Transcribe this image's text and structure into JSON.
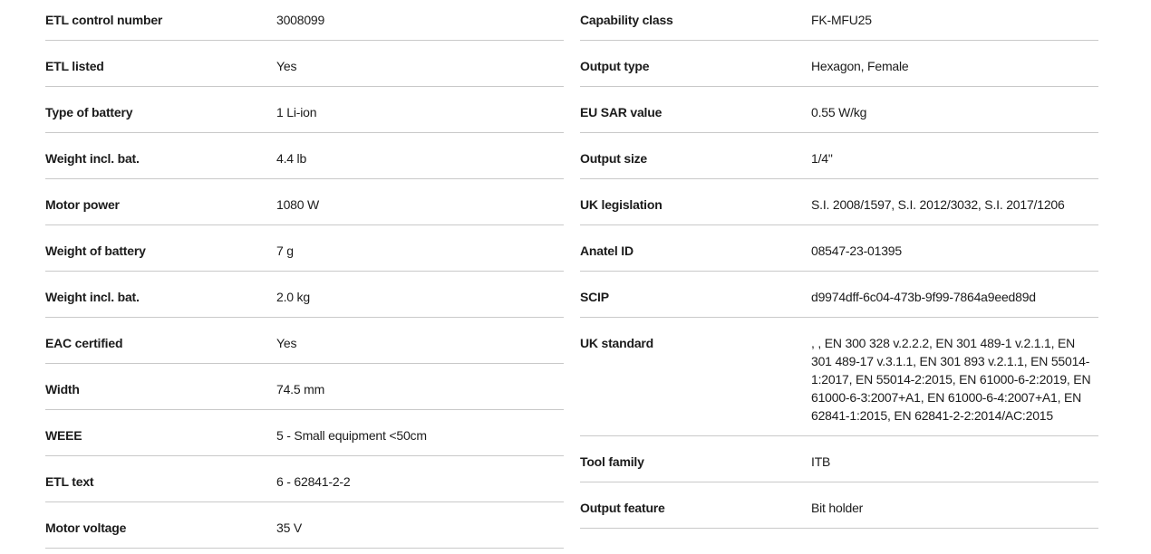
{
  "colors": {
    "text": "#1b1b1b",
    "divider": "#c9c9c9",
    "background": "#ffffff"
  },
  "left_table": {
    "rows": [
      {
        "label": "ETL control number",
        "value": "3008099"
      },
      {
        "label": "ETL listed",
        "value": "Yes"
      },
      {
        "label": "Type of battery",
        "value": "1 Li-ion"
      },
      {
        "label": "Weight incl. bat.",
        "value": "4.4 lb"
      },
      {
        "label": "Motor power",
        "value": "1080 W"
      },
      {
        "label": "Weight of battery",
        "value": "7 g"
      },
      {
        "label": "Weight incl. bat.",
        "value": "2.0 kg"
      },
      {
        "label": "EAC certified",
        "value": "Yes"
      },
      {
        "label": "Width",
        "value": "74.5 mm"
      },
      {
        "label": "WEEE",
        "value": "5 - Small equipment <50cm"
      },
      {
        "label": "ETL text",
        "value": "6 - 62841-2-2"
      },
      {
        "label": "Motor voltage",
        "value": "35 V"
      }
    ]
  },
  "right_table": {
    "rows": [
      {
        "label": "Capability class",
        "value": "FK-MFU25"
      },
      {
        "label": "Output type",
        "value": "Hexagon, Female"
      },
      {
        "label": "EU SAR value",
        "value": "0.55 W/kg"
      },
      {
        "label": "Output size",
        "value": "1/4\""
      },
      {
        "label": "UK legislation",
        "value": "S.I. 2008/1597, S.I. 2012/3032, S.I. 2017/1206"
      },
      {
        "label": "Anatel ID",
        "value": "08547-23-01395"
      },
      {
        "label": "SCIP",
        "value": "d9974dff-6c04-473b-9f99-7864a9eed89d"
      },
      {
        "label": "UK standard",
        "value": ", , EN 300 328 v.2.2.2, EN 301 489-1 v.2.1.1, EN 301 489-17 v.3.1.1, EN 301 893 v.2.1.1, EN 55014-1:2017, EN 55014-2:2015, EN 61000-6-2:2019, EN 61000-6-3:2007+A1, EN 61000-6-4:2007+A1, EN 62841-1:2015, EN 62841-2-2:2014/AC:2015"
      },
      {
        "label": "Tool family",
        "value": "ITB"
      },
      {
        "label": "Output feature",
        "value": "Bit holder"
      }
    ]
  }
}
